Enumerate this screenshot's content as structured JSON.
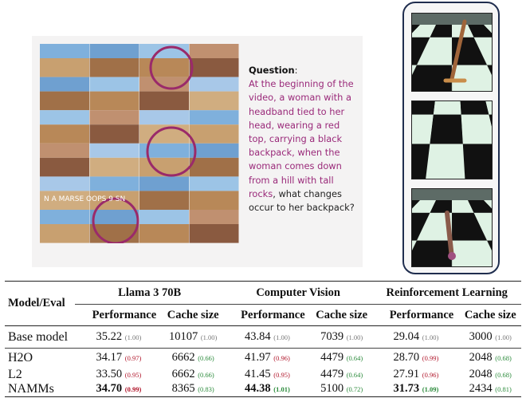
{
  "video_qa": {
    "overlay_text": "N A MARSE OOPS 9 SN",
    "question_label": "Question",
    "question_colon": ":",
    "question_highlight": "At the beginning of the video, a woman with a headband tied to her head, wearing a red top, carrying a black backpack, when the woman comes down from a hill with tall rocks",
    "question_rest": ", what changes occur to her backpack?",
    "highlight_color": "#9a2a7a"
  },
  "rl_panel": {
    "border_color": "#1f2d4e",
    "frames": 3
  },
  "table": {
    "header": {
      "model": "Model/Eval",
      "groups": [
        "Llama 3 70B",
        "Computer Vision",
        "Reinforcement Learning"
      ],
      "sub": [
        "Performance",
        "Cache size"
      ]
    },
    "rows": [
      {
        "model": "Base model",
        "cells": [
          [
            "35.22",
            "(1.00)",
            "k",
            false
          ],
          [
            "10107",
            "(1.00)",
            "k",
            false
          ],
          [
            "43.84",
            "(1.00)",
            "k",
            false
          ],
          [
            "7039",
            "(1.00)",
            "k",
            false
          ],
          [
            "29.04",
            "(1.00)",
            "k",
            false
          ],
          [
            "3000",
            "(1.00)",
            "k",
            false
          ]
        ]
      },
      {
        "model": "H2O",
        "cells": [
          [
            "34.17",
            "(0.97)",
            "r",
            false
          ],
          [
            "6662",
            "(0.66)",
            "g",
            false
          ],
          [
            "41.97",
            "(0.96)",
            "r",
            false
          ],
          [
            "4479",
            "(0.64)",
            "g",
            false
          ],
          [
            "28.70",
            "(0.99)",
            "r",
            false
          ],
          [
            "2048",
            "(0.68)",
            "g",
            false
          ]
        ]
      },
      {
        "model": "L2",
        "cells": [
          [
            "33.50",
            "(0.95)",
            "r",
            false
          ],
          [
            "6662",
            "(0.66)",
            "g",
            false
          ],
          [
            "41.45",
            "(0.95)",
            "r",
            false
          ],
          [
            "4479",
            "(0.64)",
            "g",
            false
          ],
          [
            "27.91",
            "(0.96)",
            "r",
            false
          ],
          [
            "2048",
            "(0.68)",
            "g",
            false
          ]
        ]
      },
      {
        "model": "NAMMs",
        "cells": [
          [
            "34.70",
            "(0.99)",
            "r",
            true
          ],
          [
            "8365",
            "(0.83)",
            "g",
            false
          ],
          [
            "44.38",
            "(1.01)",
            "g",
            true
          ],
          [
            "5100",
            "(0.72)",
            "g",
            false
          ],
          [
            "31.73",
            "(1.09)",
            "g",
            true
          ],
          [
            "2434",
            "(0.81)",
            "g",
            false
          ]
        ]
      }
    ]
  }
}
